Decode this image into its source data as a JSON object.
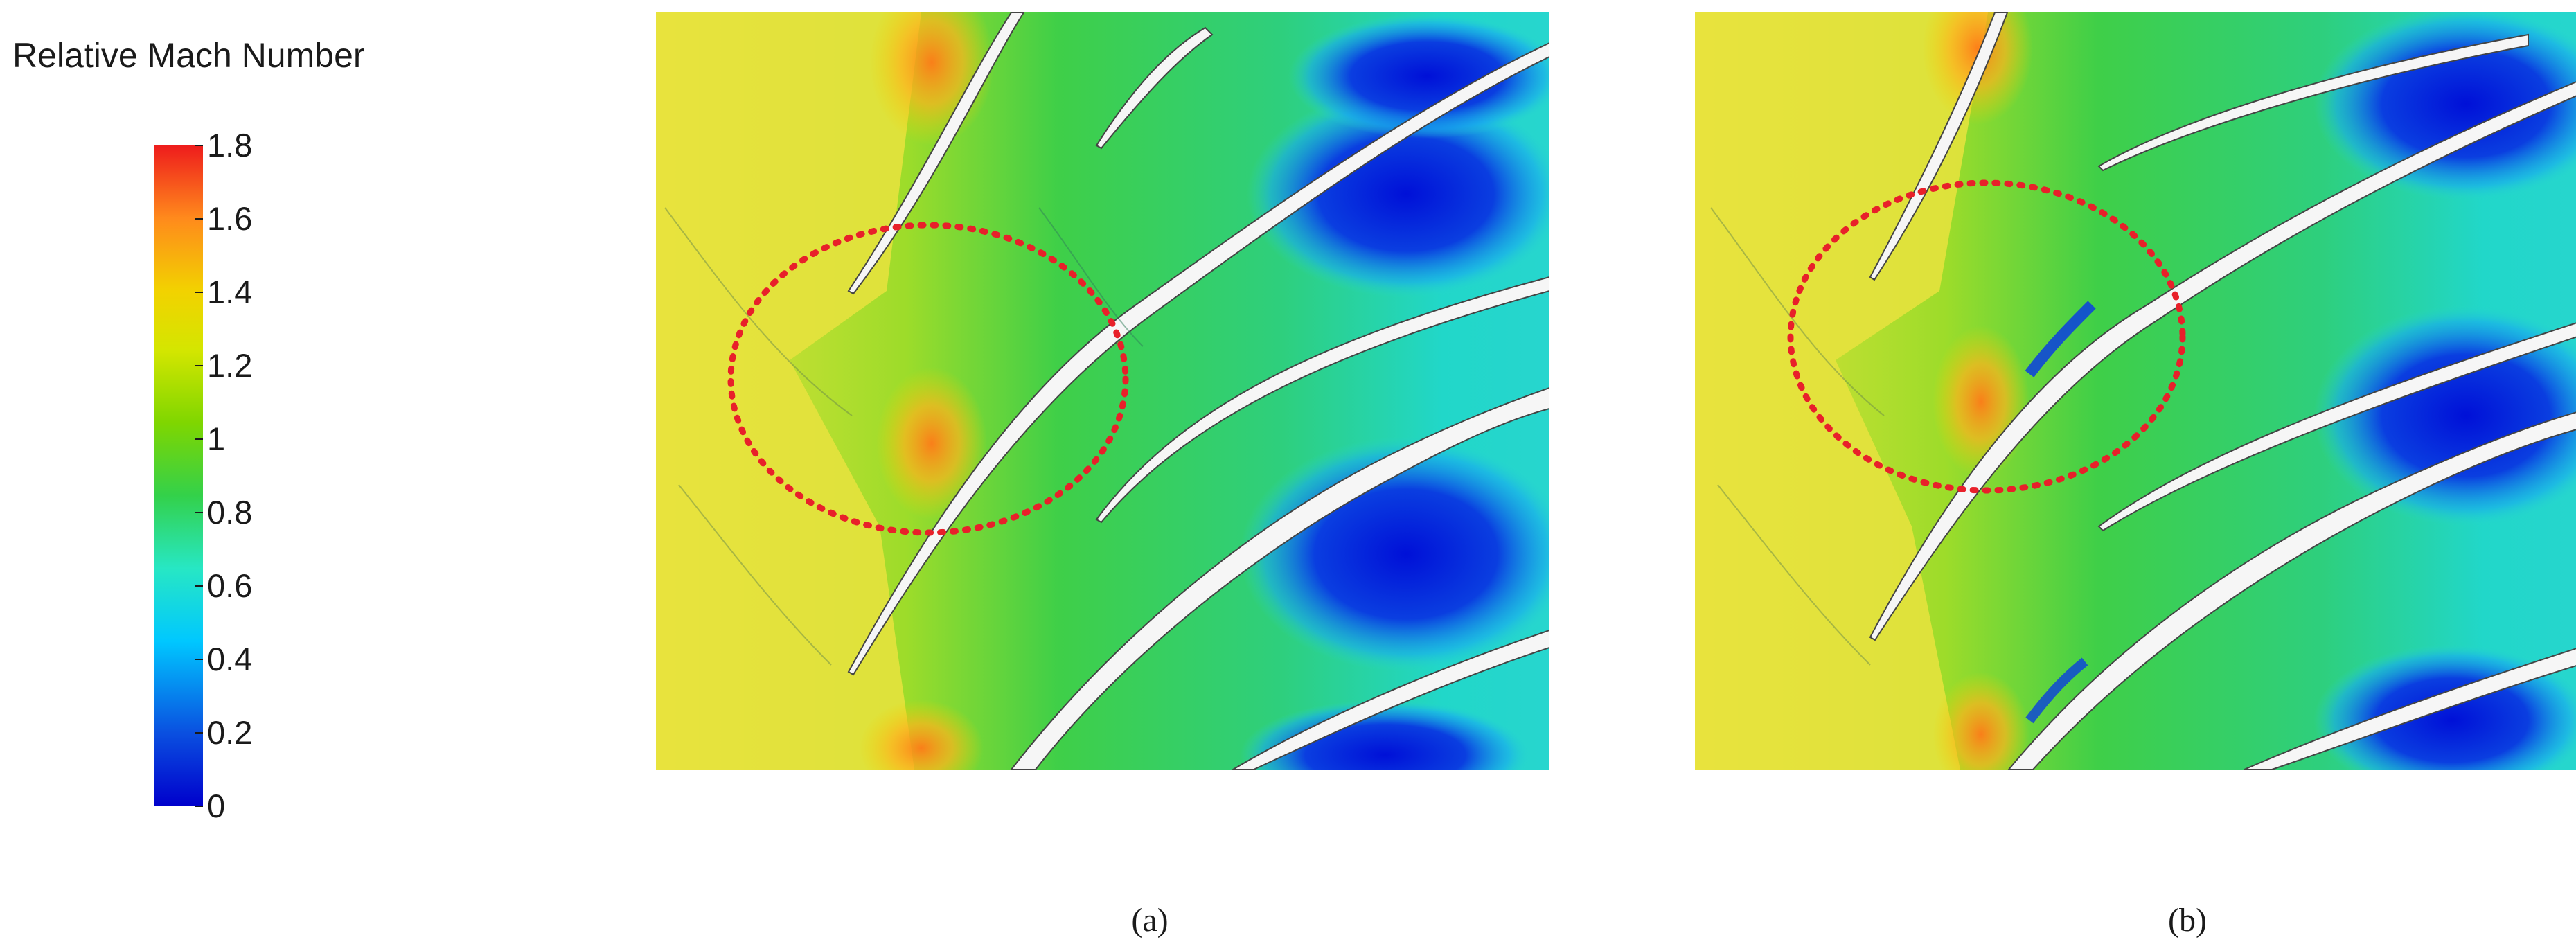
{
  "legend": {
    "title": "Relative Mach Number",
    "ticks": [
      "1.8",
      "1.6",
      "1.4",
      "1.2",
      "1",
      "0.8",
      "0.6",
      "0.4",
      "0.2",
      "0"
    ],
    "min": 0,
    "max": 1.8,
    "colormap": [
      "#0000cc",
      "#0a4fe0",
      "#00c8ff",
      "#27e7c4",
      "#33d14a",
      "#7fd600",
      "#d4e600",
      "#f2d200",
      "#ff8a1c",
      "#ee1c1c"
    ]
  },
  "panels": [
    {
      "caption": "(a)",
      "highlight": "red dotted ellipse"
    },
    {
      "caption": "(b)",
      "highlight": "red dotted ellipse"
    }
  ],
  "colors": {
    "highlight": "#e8202a",
    "blade": "#f4f4f4"
  }
}
